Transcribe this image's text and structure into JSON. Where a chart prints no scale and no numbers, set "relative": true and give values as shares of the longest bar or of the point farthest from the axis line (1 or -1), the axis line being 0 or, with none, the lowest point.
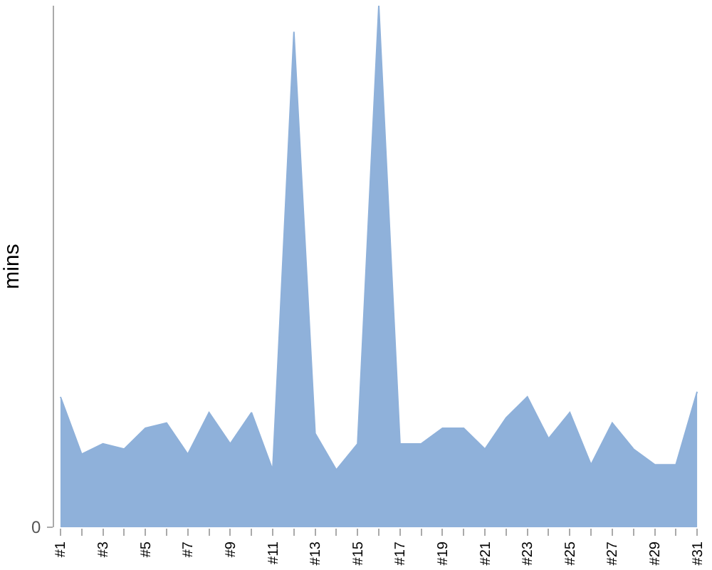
{
  "chart_data": {
    "type": "area",
    "ylabel": "mins",
    "relative": true,
    "categories": [
      "#1",
      null,
      "#3",
      null,
      "#5",
      null,
      "#7",
      null,
      "#9",
      null,
      "#11",
      null,
      "#13",
      null,
      "#15",
      null,
      "#17",
      null,
      "#19",
      null,
      "#21",
      null,
      "#23",
      null,
      "#25",
      null,
      "#27",
      null,
      "#29",
      null,
      "#31"
    ],
    "values": [
      0.25,
      0.14,
      0.16,
      0.15,
      0.19,
      0.2,
      0.14,
      0.22,
      0.16,
      0.22,
      0.11,
      0.95,
      0.18,
      0.11,
      0.16,
      1,
      0.16,
      0.16,
      0.19,
      0.19,
      0.15,
      0.21,
      0.25,
      0.17,
      0.22,
      0.12,
      0.2,
      0.15,
      0.12,
      0.12,
      0.26
    ],
    "color": "#8fb1da",
    "annotations": [
      "0"
    ]
  }
}
